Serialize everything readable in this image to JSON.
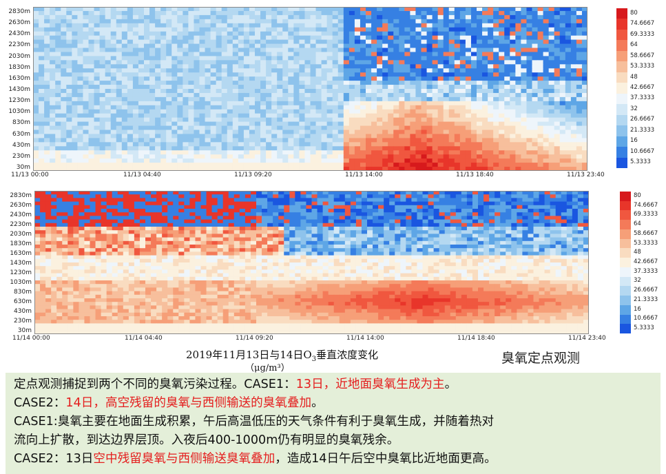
{
  "panels": [
    {
      "y_ticks": [
        "2830m",
        "2630m",
        "2430m",
        "2230m",
        "2030m",
        "1830m",
        "1630m",
        "1430m",
        "1230m",
        "1030m",
        "830m",
        "630m",
        "430m",
        "230m",
        "30m"
      ],
      "x_ticks": [
        "11/13 00:00",
        "11/13 04:40",
        "11/13 09:20",
        "11/13 14:00",
        "11/13 18:40",
        "11/13 23:40"
      ]
    },
    {
      "y_ticks": [
        "2830m",
        "2630m",
        "2430m",
        "2230m",
        "2030m",
        "1830m",
        "1630m",
        "1430m",
        "1230m",
        "1030m",
        "830m",
        "630m",
        "430m",
        "230m",
        "30m"
      ],
      "x_ticks": [
        "11/14 00:00",
        "11/14 04:40",
        "11/14 09:20",
        "11/14 14:00",
        "11/14 18:40",
        "11/14 23:40"
      ]
    }
  ],
  "colorbar": {
    "ticks": [
      "80",
      "74.6667",
      "69.3333",
      "64",
      "58.6667",
      "53.3333",
      "48",
      "42.6667",
      "37.3333",
      "32",
      "26.6667",
      "21.3333",
      "16",
      "10.6667",
      "5.3333"
    ],
    "colors": [
      "#d7191c",
      "#e8352a",
      "#f0573f",
      "#f47a59",
      "#f69f78",
      "#f7bf9c",
      "#f9dcc0",
      "#fbf1df",
      "#eef5fb",
      "#d3e8f6",
      "#b4d8f1",
      "#8ec3ec",
      "#5ea6e6",
      "#3680e3",
      "#1a56e0"
    ]
  },
  "caption": {
    "prefix": "2019年11月13日与14日O",
    "subscript": "3",
    "suffix": "垂直浓度变化",
    "unit": "（μg/m³）"
  },
  "observation_label": "臭氧定点观测",
  "summary": {
    "line1_a": "定点观测捕捉到两个不同的臭氧污染过程。CASE1：",
    "line1_b": "13日，近地面臭氧生成为主",
    "line1_c": "。",
    "line2_a": "CASE2：",
    "line2_b": "14日，高空残留的臭氧与西侧输送的臭氧叠加",
    "line2_c": "。",
    "line3": "CASE1:臭氧主要在地面生成积累，午后高温低压的天气条件有利于臭氧生成，并随着热对",
    "line4": "流向上扩散，到达边界层顶。入夜后400-1000m仍有明显的臭氧残余。",
    "line5_a": "CASE2：13日",
    "line5_b": "空中残留臭氧与西侧输送臭氧叠加",
    "line5_c": "，造成14日午后空中臭氧比近地面更高。"
  }
}
